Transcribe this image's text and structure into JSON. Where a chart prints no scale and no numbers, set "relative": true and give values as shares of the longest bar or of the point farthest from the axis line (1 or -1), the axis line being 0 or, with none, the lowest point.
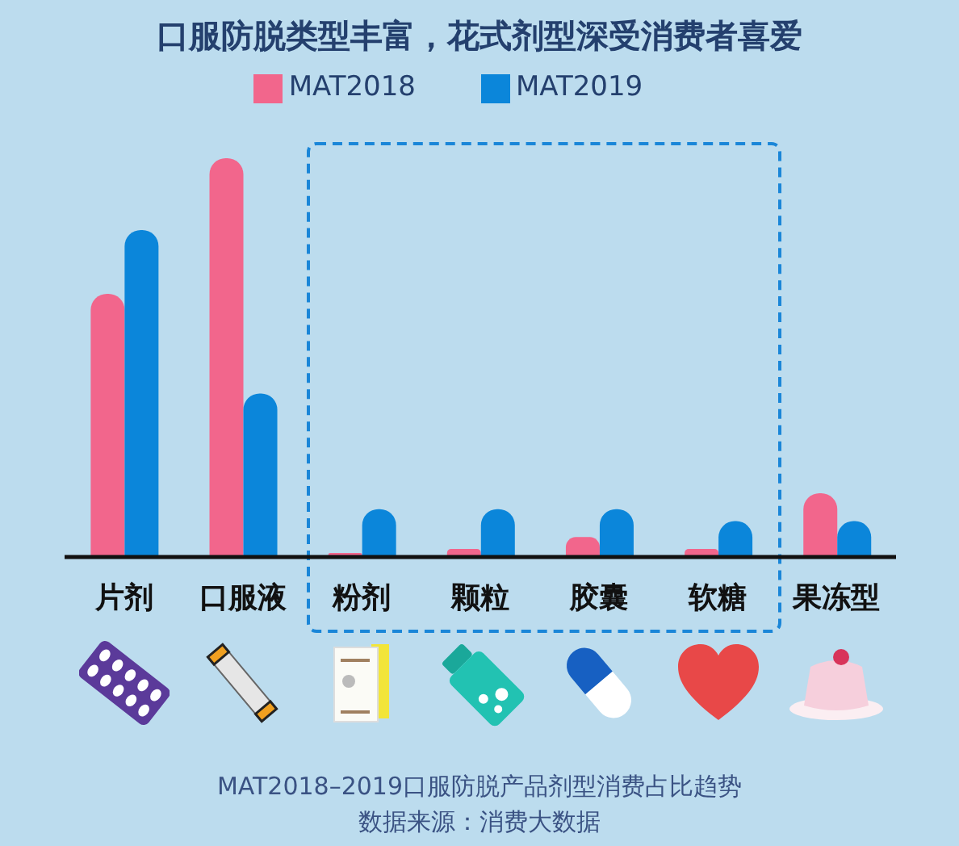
{
  "chart_data": {
    "type": "bar",
    "title": "口服防脱类型丰富，花式剂型深受消费者喜爱",
    "categories": [
      "片剂",
      "口服液",
      "粉剂",
      "颗粒",
      "胶囊",
      "软糖",
      "果冻型"
    ],
    "series": [
      {
        "name": "MAT2018",
        "color": "#f2668c",
        "values": [
          0.66,
          1,
          0.01,
          0.02,
          0.05,
          0.02,
          0.16
        ]
      },
      {
        "name": "MAT2019",
        "color": "#0b86da",
        "values": [
          0.82,
          0.41,
          0.12,
          0.12,
          0.12,
          0.09,
          0.09
        ]
      }
    ],
    "relative": true,
    "legend": "top",
    "annotations": [
      "MAT2018–2019口服防脱产品剂型消费占比趋势",
      "数据来源：消费大数据"
    ]
  }
}
